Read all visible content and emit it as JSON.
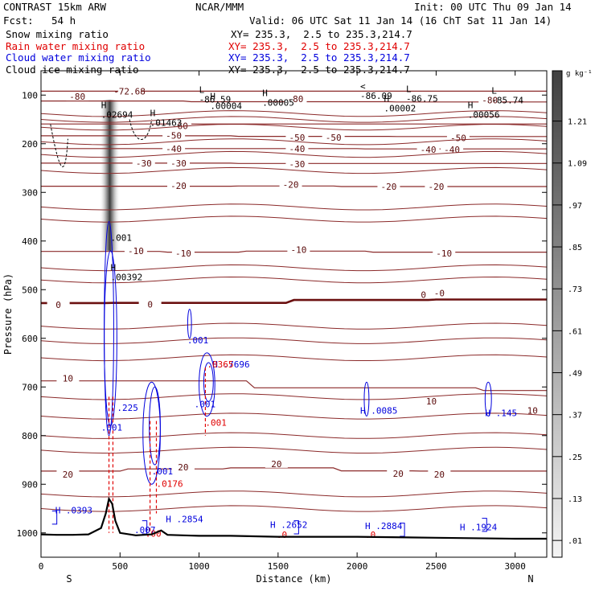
{
  "header": {
    "model": "CONTRAST 15km ARW",
    "org": "NCAR/MMM",
    "init": "Init: 00 UTC Thu 09 Jan 14",
    "fcst_label": "Fcst:",
    "fcst_value": "54 h",
    "valid": "Valid: 06 UTC Sat 11 Jan 14 (16 ChT Sat 11 Jan 14)",
    "fields": [
      {
        "name": "Snow mixing ratio",
        "xy": "XY= 235.3,  2.5 to 235.3,214.7",
        "color": "#000000"
      },
      {
        "name": "Rain water mixing ratio",
        "xy": "XY= 235.3,  2.5 to 235.3,214.7",
        "color": "#e00000"
      },
      {
        "name": "Cloud water mixing ratio",
        "xy": "XY= 235.3,  2.5 to 235.3,214.7",
        "color": "#0000dd"
      },
      {
        "name": "Cloud ice mixing ratio",
        "xy": "XY= 235.3,  2.5 to 235.3,214.7",
        "color": "#000000"
      }
    ]
  },
  "chart_data": {
    "type": "cross-section contour",
    "xlabel": "Distance (km)",
    "ylabel": "Pressure (hPa)",
    "xlim": [
      0,
      3200
    ],
    "ylim": [
      1050,
      50
    ],
    "x_ticks": [
      0,
      500,
      1000,
      1500,
      2000,
      2500,
      3000
    ],
    "y_ticks": [
      100,
      200,
      300,
      400,
      500,
      600,
      700,
      800,
      900,
      1000
    ],
    "end_labels": {
      "left": "S",
      "right": "N"
    },
    "colorbar": {
      "unit": "g kg⁻¹",
      "ticks": [
        ".01",
        ".13",
        ".25",
        ".37",
        ".49",
        ".61",
        ".73",
        ".85",
        ".97",
        "1.09",
        "1.21"
      ]
    },
    "temperature_isotherms": [
      {
        "value": -80,
        "labels": [
          {
            "x": 230,
            "p": 103,
            "text": "-80"
          },
          {
            "x": 1610,
            "p": 108,
            "text": "-80"
          },
          {
            "x": 2840,
            "p": 110,
            "text": "-80"
          }
        ]
      },
      {
        "value": -70,
        "labels": [
          {
            "x": 560,
            "p": 92,
            "text": "-72.68"
          }
        ]
      },
      {
        "value": -60,
        "labels": [
          {
            "x": 880,
            "p": 163,
            "text": "-60"
          }
        ]
      },
      {
        "value": -50,
        "labels": [
          {
            "x": 840,
            "p": 183,
            "text": "-50"
          },
          {
            "x": 1620,
            "p": 187,
            "text": "-50"
          },
          {
            "x": 1850,
            "p": 187,
            "text": "-50"
          },
          {
            "x": 2640,
            "p": 188,
            "text": "-50"
          }
        ]
      },
      {
        "value": -40,
        "labels": [
          {
            "x": 840,
            "p": 210,
            "text": "-40"
          },
          {
            "x": 1620,
            "p": 210,
            "text": "-40"
          },
          {
            "x": 2450,
            "p": 212,
            "text": "-40"
          },
          {
            "x": 2600,
            "p": 212,
            "text": "-40"
          }
        ]
      },
      {
        "value": -30,
        "labels": [
          {
            "x": 650,
            "p": 240,
            "text": "-30"
          },
          {
            "x": 870,
            "p": 240,
            "text": "-30"
          },
          {
            "x": 1620,
            "p": 242,
            "text": "-30"
          }
        ]
      },
      {
        "value": -20,
        "labels": [
          {
            "x": 870,
            "p": 286,
            "text": "-20"
          },
          {
            "x": 1580,
            "p": 284,
            "text": "-20"
          },
          {
            "x": 2200,
            "p": 288,
            "text": "-20"
          },
          {
            "x": 2500,
            "p": 288,
            "text": "-20"
          }
        ]
      },
      {
        "value": -10,
        "labels": [
          {
            "x": 600,
            "p": 420,
            "text": "-10"
          },
          {
            "x": 900,
            "p": 425,
            "text": "-10"
          },
          {
            "x": 1630,
            "p": 418,
            "text": "-10"
          },
          {
            "x": 2550,
            "p": 425,
            "text": "-10"
          }
        ]
      },
      {
        "value": 0,
        "labels": [
          {
            "x": 110,
            "p": 531,
            "text": "0"
          },
          {
            "x": 690,
            "p": 530,
            "text": "0"
          },
          {
            "x": 2420,
            "p": 510,
            "text": "0"
          },
          {
            "x": 2520,
            "p": 507,
            "text": "-0"
          }
        ]
      },
      {
        "value": 10,
        "labels": [
          {
            "x": 170,
            "p": 682,
            "text": "10"
          },
          {
            "x": 2470,
            "p": 729,
            "text": "10"
          },
          {
            "x": 3110,
            "p": 748,
            "text": "10"
          }
        ]
      },
      {
        "value": 20,
        "labels": [
          {
            "x": 170,
            "p": 880,
            "text": "20"
          },
          {
            "x": 900,
            "p": 865,
            "text": "20"
          },
          {
            "x": 1490,
            "p": 858,
            "text": "20"
          },
          {
            "x": 2260,
            "p": 878,
            "text": "20"
          },
          {
            "x": 2520,
            "p": 880,
            "text": "20"
          }
        ]
      }
    ],
    "max_min_labels": [
      {
        "x": 2020,
        "p": 91,
        "letter": "<",
        "value": "-86.09"
      },
      {
        "x": 1000,
        "p": 99,
        "letter": "L",
        "value": "-86.59"
      },
      {
        "x": 2310,
        "p": 97,
        "letter": "L",
        "value": "-86.75"
      },
      {
        "x": 2850,
        "p": 100,
        "letter": "L",
        "value": "-85.74"
      },
      {
        "x": 1070,
        "p": 112,
        "letter": "H",
        "value": ".00004"
      },
      {
        "x": 1400,
        "p": 105,
        "letter": "H",
        "value": ".00005"
      },
      {
        "x": 2170,
        "p": 117,
        "letter": "H",
        "value": ".00002"
      },
      {
        "x": 2700,
        "p": 130,
        "letter": "H",
        "value": ".00056"
      },
      {
        "x": 380,
        "p": 130,
        "letter": "H",
        "value": ".02694"
      },
      {
        "x": 690,
        "p": 147,
        "letter": "H",
        "value": ".01463"
      },
      {
        "x": 440,
        "p": 383,
        "letter": "",
        "value": ".001"
      },
      {
        "x": 440,
        "p": 464,
        "letter": "H",
        "value": ".00392"
      }
    ],
    "cloud_water_labels": [
      {
        "x": 1085,
        "p": 660,
        "text": "H .7696"
      },
      {
        "x": 925,
        "p": 610,
        "text": ".001"
      },
      {
        "x": 970,
        "p": 742,
        "text": ".001"
      },
      {
        "x": 2020,
        "p": 755,
        "text": "H .0085"
      },
      {
        "x": 2810,
        "p": 760,
        "text": "H .145"
      },
      {
        "x": 700,
        "p": 880,
        "text": ".001"
      },
      {
        "x": 480,
        "p": 749,
        "text": ".225"
      },
      {
        "x": 380,
        "p": 790,
        "text": ".001"
      },
      {
        "x": 90,
        "p": 960,
        "text": "H .0393"
      },
      {
        "x": 790,
        "p": 978,
        "text": "H .2854"
      },
      {
        "x": 590,
        "p": 1000,
        "text": ".007"
      },
      {
        "x": 1450,
        "p": 990,
        "text": "H .2652"
      },
      {
        "x": 2050,
        "p": 992,
        "text": "H .2884"
      },
      {
        "x": 2650,
        "p": 995,
        "text": "H .1924"
      }
    ],
    "rain_water_labels": [
      {
        "x": 730,
        "p": 905,
        "text": ".0176"
      },
      {
        "x": 1040,
        "p": 780,
        "text": ".001"
      },
      {
        "x": 1050,
        "p": 660,
        "text": ".0365"
      },
      {
        "x": 660,
        "p": 1008,
        "text": ".00"
      },
      {
        "x": 1490,
        "p": 1010,
        "text": ".0"
      },
      {
        "x": 2050,
        "p": 1010,
        "text": ".0"
      }
    ],
    "terrain": {
      "x": [
        0,
        100,
        200,
        300,
        380,
        410,
        430,
        450,
        470,
        500,
        600,
        700,
        760,
        800,
        900,
        1000,
        1200,
        1500,
        2000,
        2500,
        3000,
        3200
      ],
      "p": [
        1003,
        1004,
        1004,
        1003,
        990,
        960,
        930,
        940,
        975,
        1000,
        1005,
        1003,
        995,
        1004,
        1005,
        1006,
        1006,
        1008,
        1008,
        1010,
        1012,
        1012
      ]
    }
  }
}
